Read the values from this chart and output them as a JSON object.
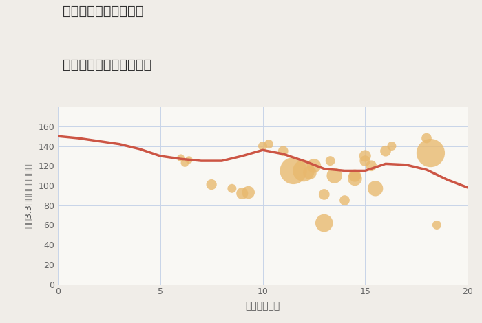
{
  "title_line1": "愛知県安城市小川町の",
  "title_line2": "駅距離別中古戸建て価格",
  "xlabel": "駅距離（分）",
  "ylabel": "坪（3.3㎡）単価（万円）",
  "background_color": "#f0ede8",
  "plot_bg_color": "#f9f8f4",
  "grid_color": "#c8d4e8",
  "bubble_color": "#e8b86d",
  "bubble_alpha": 0.78,
  "line_color": "#cc5544",
  "line_width": 2.5,
  "xlim": [
    0,
    20
  ],
  "ylim": [
    0,
    180
  ],
  "yticks": [
    0,
    20,
    40,
    60,
    80,
    100,
    120,
    140,
    160
  ],
  "xticks": [
    0,
    5,
    10,
    15,
    20
  ],
  "scatter_x": [
    6.0,
    6.2,
    6.4,
    7.5,
    8.5,
    9.0,
    9.3,
    10.0,
    10.3,
    11.0,
    11.5,
    12.0,
    12.3,
    12.5,
    13.0,
    13.0,
    13.3,
    13.5,
    14.0,
    14.5,
    14.5,
    15.0,
    15.0,
    15.3,
    15.5,
    16.0,
    16.3,
    18.0,
    18.2,
    18.5
  ],
  "scatter_y": [
    128,
    123,
    126,
    101,
    97,
    92,
    93,
    140,
    142,
    135,
    115,
    115,
    113,
    120,
    62,
    91,
    125,
    110,
    85,
    107,
    110,
    125,
    130,
    120,
    97,
    135,
    140,
    148,
    133,
    60
  ],
  "scatter_size": [
    15,
    18,
    15,
    30,
    22,
    38,
    45,
    22,
    22,
    28,
    200,
    130,
    50,
    55,
    85,
    32,
    25,
    65,
    28,
    55,
    42,
    32,
    38,
    32,
    65,
    32,
    22,
    28,
    220,
    22
  ],
  "trend_x": [
    0,
    1,
    2,
    3,
    4,
    5,
    6,
    7,
    8,
    9,
    10,
    11,
    12,
    13,
    14,
    15,
    16,
    17,
    18,
    19,
    20
  ],
  "trend_y": [
    150,
    148,
    145,
    142,
    137,
    130,
    127,
    125,
    125,
    130,
    136,
    132,
    125,
    117,
    115,
    115,
    122,
    121,
    116,
    106,
    98
  ]
}
